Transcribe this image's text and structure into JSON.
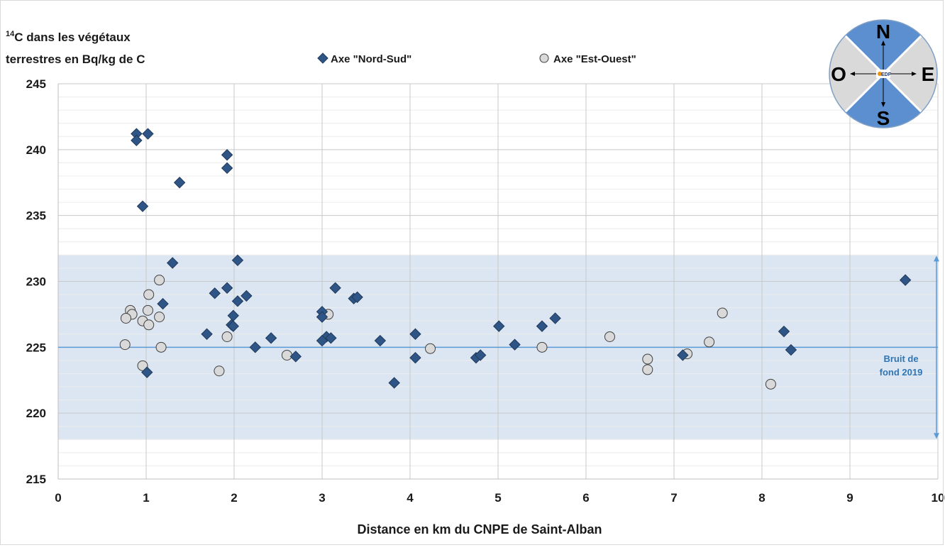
{
  "chart_data": {
    "type": "scatter",
    "title_prefix": "14",
    "title_line1": "C dans les végétaux",
    "title_line2": "terrestres en Bq/kg de C",
    "xlabel": "Distance en km du CNPE de Saint-Alban",
    "ylabel": "",
    "xlim": [
      0,
      10
    ],
    "ylim": [
      215,
      245
    ],
    "x_ticks": [
      "0",
      "1",
      "2",
      "3",
      "4",
      "5",
      "6",
      "7",
      "8",
      "9",
      "10"
    ],
    "y_ticks": [
      "215",
      "220",
      "225",
      "230",
      "235",
      "240",
      "245"
    ],
    "grid": true,
    "legend_placement": "top",
    "series": [
      {
        "name": "Axe \"Nord-Sud\"",
        "marker": "diamond",
        "color": "#2e5585",
        "stroke": "#1f3a5c",
        "points": [
          [
            0.89,
            241.2
          ],
          [
            1.02,
            241.2
          ],
          [
            0.89,
            240.7
          ],
          [
            0.96,
            235.7
          ],
          [
            1.38,
            237.5
          ],
          [
            1.3,
            231.4
          ],
          [
            1.19,
            228.3
          ],
          [
            1.01,
            223.1
          ],
          [
            1.92,
            239.6
          ],
          [
            1.92,
            238.6
          ],
          [
            2.04,
            231.6
          ],
          [
            1.78,
            229.1
          ],
          [
            1.92,
            229.5
          ],
          [
            2.14,
            228.9
          ],
          [
            2.04,
            228.5
          ],
          [
            1.99,
            227.4
          ],
          [
            1.97,
            226.7
          ],
          [
            1.99,
            226.6
          ],
          [
            1.69,
            226.0
          ],
          [
            2.24,
            225.0
          ],
          [
            2.42,
            225.7
          ],
          [
            2.7,
            224.3
          ],
          [
            3.0,
            227.7
          ],
          [
            3.0,
            227.3
          ],
          [
            3.15,
            229.5
          ],
          [
            3.36,
            228.7
          ],
          [
            3.4,
            228.8
          ],
          [
            3.05,
            225.8
          ],
          [
            3.0,
            225.5
          ],
          [
            3.1,
            225.7
          ],
          [
            3.66,
            225.5
          ],
          [
            3.82,
            222.3
          ],
          [
            4.06,
            226.0
          ],
          [
            4.06,
            224.2
          ],
          [
            4.75,
            224.2
          ],
          [
            4.8,
            224.4
          ],
          [
            5.01,
            226.6
          ],
          [
            5.19,
            225.2
          ],
          [
            5.5,
            226.6
          ],
          [
            5.65,
            227.2
          ],
          [
            7.1,
            224.4
          ],
          [
            8.25,
            226.2
          ],
          [
            8.33,
            224.8
          ],
          [
            9.63,
            230.1
          ]
        ]
      },
      {
        "name": "Axe \"Est-Ouest\"",
        "marker": "circle",
        "color": "#d9d9d9",
        "stroke": "#404040",
        "points": [
          [
            0.82,
            227.8
          ],
          [
            0.84,
            227.5
          ],
          [
            0.77,
            227.2
          ],
          [
            0.76,
            225.2
          ],
          [
            0.96,
            223.6
          ],
          [
            1.03,
            229.0
          ],
          [
            1.02,
            227.8
          ],
          [
            0.96,
            227.0
          ],
          [
            1.03,
            226.7
          ],
          [
            1.15,
            230.1
          ],
          [
            1.15,
            227.3
          ],
          [
            1.17,
            225.0
          ],
          [
            1.92,
            225.8
          ],
          [
            1.83,
            223.2
          ],
          [
            2.6,
            224.4
          ],
          [
            3.07,
            227.5
          ],
          [
            4.23,
            224.9
          ],
          [
            5.5,
            225.0
          ],
          [
            6.27,
            225.8
          ],
          [
            6.7,
            224.1
          ],
          [
            6.7,
            223.3
          ],
          [
            7.15,
            224.5
          ],
          [
            7.4,
            225.4
          ],
          [
            7.55,
            227.6
          ],
          [
            8.1,
            222.2
          ]
        ]
      }
    ],
    "background_band": {
      "y_min": 218,
      "y_max": 232,
      "color": "#dce6f2"
    },
    "reference_line": {
      "y": 225,
      "color": "#5b9bd5",
      "label_line1": "Bruit de",
      "label_line2": "fond 2019"
    },
    "compass": {
      "north": "N",
      "south": "S",
      "east": "E",
      "west": "O",
      "logo_text": "EDF",
      "blue_color": "#5b8fcf",
      "gray_color": "#d9d9d9"
    }
  }
}
